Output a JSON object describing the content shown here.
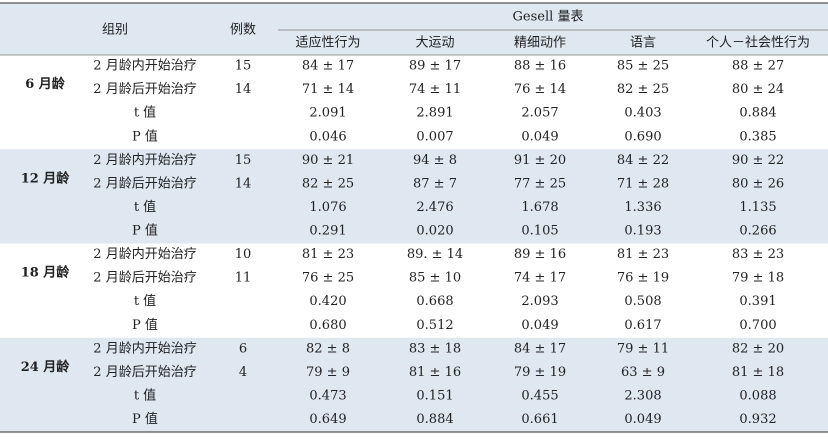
{
  "header": {
    "group": "组别",
    "count": "例数",
    "scale": "Gesell 量表",
    "columns": [
      "适应性行为",
      "大运动",
      "精细动作",
      "语言",
      "个人－社会性行为"
    ]
  },
  "sections": [
    {
      "age": "6 月龄",
      "rows": [
        {
          "label": "2 月龄内开始治疗",
          "count": "15",
          "values": [
            "84 ± 17",
            "89 ± 17",
            "88 ± 16",
            "85 ± 25",
            "88 ± 27"
          ]
        },
        {
          "label": "2 月龄后开始治疗",
          "count": "14",
          "values": [
            "71 ± 14",
            "74 ± 11",
            "76 ± 14",
            "82 ± 25",
            "80 ± 24"
          ]
        },
        {
          "label": "t 值",
          "values": [
            "2.091",
            "2.891",
            "2.057",
            "0.403",
            "0.884"
          ]
        },
        {
          "label": "P 值",
          "values": [
            "0.046",
            "0.007",
            "0.049",
            "0.690",
            "0.385"
          ]
        }
      ]
    },
    {
      "age": "12 月龄",
      "rows": [
        {
          "label": "2 月龄内开始治疗",
          "count": "15",
          "values": [
            "90 ± 21",
            "94 ± 8",
            "91 ± 20",
            "84 ± 22",
            "90 ± 22"
          ]
        },
        {
          "label": "2 月龄后开始治疗",
          "count": "14",
          "values": [
            "82 ± 25",
            "87 ± 7",
            "77 ± 25",
            "71 ± 28",
            "80 ± 26"
          ]
        },
        {
          "label": "t 值",
          "values": [
            "1.076",
            "2.476",
            "1.678",
            "1.336",
            "1.135"
          ]
        },
        {
          "label": "P 值",
          "values": [
            "0.291",
            "0.020",
            "0.105",
            "0.193",
            "0.266"
          ]
        }
      ]
    },
    {
      "age": "18 月龄",
      "rows": [
        {
          "label": "2 月龄内开始治疗",
          "count": "10",
          "values": [
            "81 ± 23",
            "89. ± 14",
            "89 ± 16",
            "81 ± 23",
            "83 ± 23"
          ]
        },
        {
          "label": "2 月龄后开始治疗",
          "count": "11",
          "values": [
            "76 ± 25",
            "85 ± 10",
            "74 ± 17",
            "76 ± 19",
            "79 ± 18"
          ]
        },
        {
          "label": "t 值",
          "values": [
            "0.420",
            "0.668",
            "2.093",
            "0.508",
            "0.391"
          ]
        },
        {
          "label": "P 值",
          "values": [
            "0.680",
            "0.512",
            "0.049",
            "0.617",
            "0.700"
          ]
        }
      ]
    },
    {
      "age": "24 月龄",
      "rows": [
        {
          "label": "2 月龄内开始治疗",
          "count": "6",
          "values": [
            "82 ± 8",
            "83 ± 18",
            "84 ± 17",
            "79 ± 11",
            "82 ± 20"
          ]
        },
        {
          "label": "2 月龄后开始治疗",
          "count": "4",
          "values": [
            "79 ± 9",
            "81 ± 16",
            "79 ± 19",
            "63 ± 9",
            "81 ± 18"
          ]
        },
        {
          "label": "t 值",
          "values": [
            "0.473",
            "0.151",
            "0.455",
            "2.308",
            "0.088"
          ]
        },
        {
          "label": "P 值",
          "values": [
            "0.649",
            "0.884",
            "0.661",
            "0.049",
            "0.932"
          ]
        }
      ]
    }
  ]
}
